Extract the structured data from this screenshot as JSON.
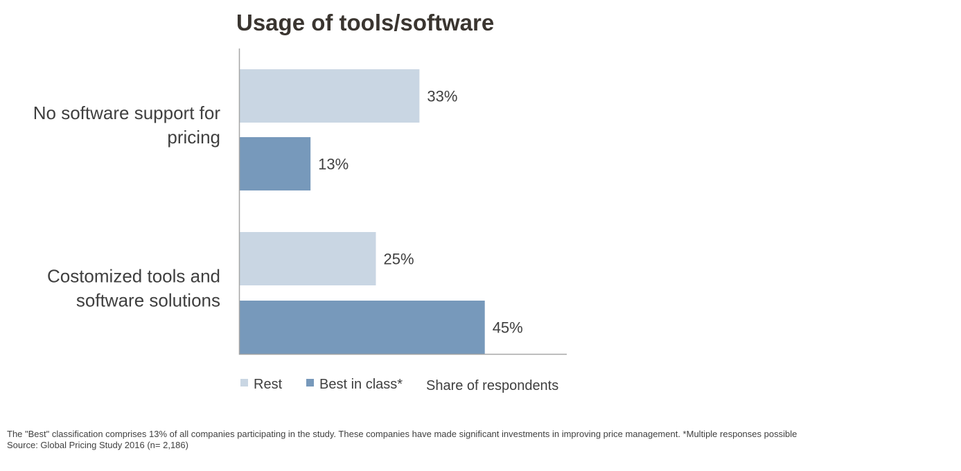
{
  "chart_data": {
    "type": "bar",
    "orientation": "horizontal",
    "title": "Usage of tools/software",
    "categories": [
      "No software support for pricing",
      "Costomized tools and software solutions"
    ],
    "category_lines": [
      [
        "No software support for",
        "pricing"
      ],
      [
        "Costomized tools and",
        "software solutions"
      ]
    ],
    "series": [
      {
        "name": "Rest",
        "values": [
          33,
          25
        ],
        "labels": [
          "33%",
          "25%"
        ],
        "color": "#c9d6e3"
      },
      {
        "name": "Best in class*",
        "values": [
          13,
          45
        ],
        "labels": [
          "13%",
          "45%"
        ],
        "color": "#7799bb"
      }
    ],
    "xlabel": "Share of respondents",
    "unit": "%",
    "xlim": [
      0,
      60
    ],
    "grid": false,
    "legend": "bottom-left"
  },
  "footnote": {
    "line1": "The \"Best\" classification comprises 13% of all companies participating in the study. These companies have made significant investments in improving price management. *Multiple responses possible",
    "line2": "Source: Global Pricing Study 2016 (n= 2,186)"
  }
}
